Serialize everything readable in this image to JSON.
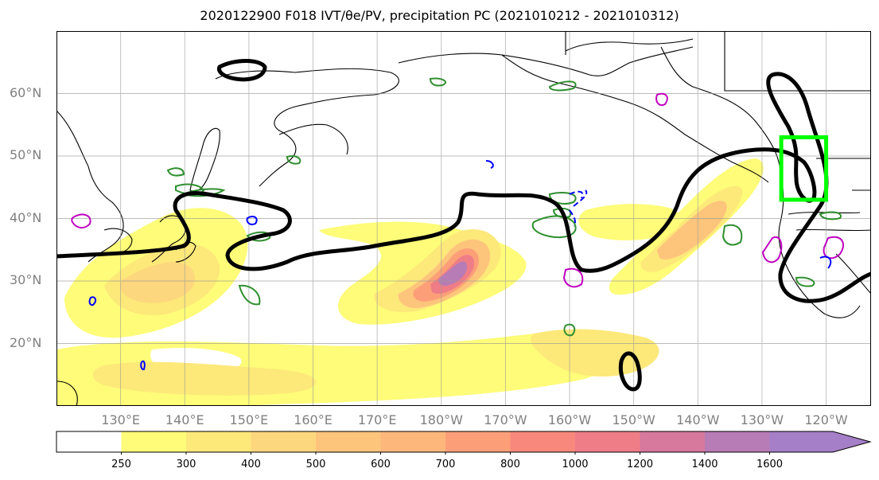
{
  "title": "2020122900 F018 IVT/θe/PV, precipitation PC (2021010212 - 2021010312)",
  "map": {
    "lat_labels": [
      {
        "text": "60°N",
        "lat": 60
      },
      {
        "text": "50°N",
        "lat": 50
      },
      {
        "text": "40°N",
        "lat": 40
      },
      {
        "text": "30°N",
        "lat": 30
      },
      {
        "text": "20°N",
        "lat": 20
      }
    ],
    "lon_labels": [
      {
        "text": "130°E",
        "lon": 130
      },
      {
        "text": "140°E",
        "lon": 140
      },
      {
        "text": "150°E",
        "lon": 150
      },
      {
        "text": "160°E",
        "lon": 160
      },
      {
        "text": "170°E",
        "lon": 170
      },
      {
        "text": "180°W",
        "lon": 180
      },
      {
        "text": "170°W",
        "lon": 190
      },
      {
        "text": "160°W",
        "lon": 200
      },
      {
        "text": "150°W",
        "lon": 210
      },
      {
        "text": "140°W",
        "lon": 220
      },
      {
        "text": "130°W",
        "lon": 230
      },
      {
        "text": "120°W",
        "lon": 240
      }
    ],
    "extent": {
      "lon_min": 120,
      "lon_max": 247,
      "lat_min": 10,
      "lat_max": 70
    },
    "highlight_box": {
      "lon_min": 233,
      "lon_max": 240,
      "lat_min": 43,
      "lat_max": 53,
      "color": "#00ff00"
    }
  },
  "colorbar": {
    "levels": [
      250,
      300,
      400,
      500,
      600,
      700,
      800,
      1000,
      1200,
      1400,
      1600
    ],
    "colors": [
      "#ffffff",
      "#fefc78",
      "#fde87a",
      "#fdd77d",
      "#fdc47c",
      "#fdb77b",
      "#fc9f78",
      "#f8887b",
      "#ee7d87",
      "#d6799d",
      "#b77cb5",
      "#a57fc7"
    ]
  }
}
